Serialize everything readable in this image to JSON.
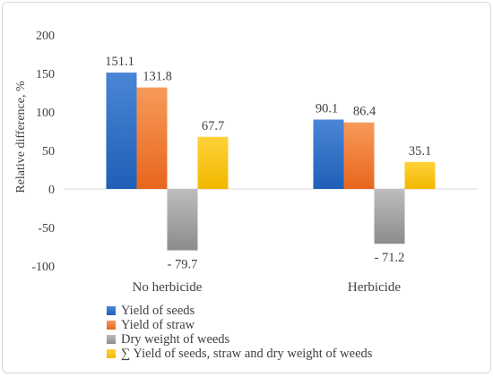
{
  "chart_data": {
    "type": "bar",
    "categories": [
      "No herbicide",
      "Herbicide"
    ],
    "ylabel": "Relative difference, %",
    "ylim": [
      -100,
      200
    ],
    "yticks": [
      200,
      150,
      100,
      50,
      0,
      -50,
      -100
    ],
    "grid": false,
    "legend_position": "bottom",
    "series": [
      {
        "name": "Yield of seeds",
        "values": [
          151.1,
          90.1
        ],
        "data_labels": [
          "151.1",
          "90.1"
        ],
        "color_top": "#4a86d6",
        "color_bottom": "#1f5fb8"
      },
      {
        "name": "Yield of straw",
        "values": [
          131.8,
          86.4
        ],
        "data_labels": [
          "131.8",
          "86.4"
        ],
        "color_top": "#f79a5a",
        "color_bottom": "#e8661c"
      },
      {
        "name": "Dry weight of weeds",
        "values": [
          -79.7,
          -71.2
        ],
        "data_labels": [
          "- 79.7",
          "- 71.2"
        ],
        "color_top": "#bdbdbd",
        "color_bottom": "#8c8c8c"
      },
      {
        "name": "∑ Yield of seeds, straw and dry weight of weeds",
        "values": [
          67.7,
          35.1
        ],
        "data_labels": [
          "67.7",
          "35.1"
        ],
        "color_top": "#ffd23a",
        "color_bottom": "#f2b800"
      }
    ]
  }
}
